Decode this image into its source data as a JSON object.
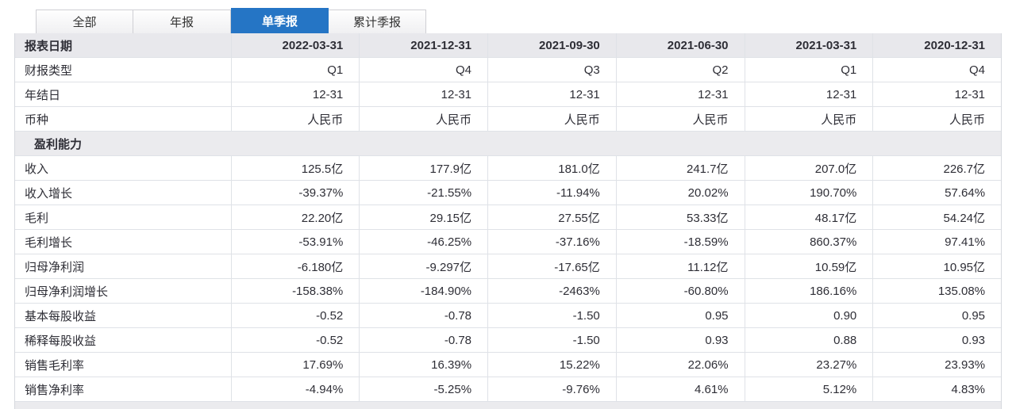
{
  "tabs": {
    "items": [
      {
        "label": "全部",
        "active": false
      },
      {
        "label": "年报",
        "active": false
      },
      {
        "label": "单季报",
        "active": true
      },
      {
        "label": "累计季报",
        "active": false
      }
    ]
  },
  "colors": {
    "accent_blue": "#2575c5",
    "header_bg": "#e8e8ec",
    "section_bg": "#ebebee"
  },
  "table": {
    "header": {
      "label": "报表日期",
      "dates": [
        "2022-03-31",
        "2021-12-31",
        "2021-09-30",
        "2021-06-30",
        "2021-03-31",
        "2020-12-31"
      ]
    },
    "rows": [
      {
        "type": "data",
        "label": "财报类型",
        "values": [
          "Q1",
          "Q4",
          "Q3",
          "Q2",
          "Q1",
          "Q4"
        ]
      },
      {
        "type": "data",
        "label": "年结日",
        "values": [
          "12-31",
          "12-31",
          "12-31",
          "12-31",
          "12-31",
          "12-31"
        ]
      },
      {
        "type": "data",
        "label": "币种",
        "values": [
          "人民币",
          "人民币",
          "人民币",
          "人民币",
          "人民币",
          "人民币"
        ]
      },
      {
        "type": "section",
        "label": "盈利能力",
        "values": [
          "",
          "",
          "",
          "",
          "",
          ""
        ]
      },
      {
        "type": "data",
        "label": "收入",
        "values": [
          "125.5亿",
          "177.9亿",
          "181.0亿",
          "241.7亿",
          "207.0亿",
          "226.7亿"
        ]
      },
      {
        "type": "data",
        "label": "收入增长",
        "values": [
          "-39.37%",
          "-21.55%",
          "-11.94%",
          "20.02%",
          "190.70%",
          "57.64%"
        ]
      },
      {
        "type": "data",
        "label": "毛利",
        "values": [
          "22.20亿",
          "29.15亿",
          "27.55亿",
          "53.33亿",
          "48.17亿",
          "54.24亿"
        ]
      },
      {
        "type": "data",
        "label": "毛利增长",
        "values": [
          "-53.91%",
          "-46.25%",
          "-37.16%",
          "-18.59%",
          "860.37%",
          "97.41%"
        ]
      },
      {
        "type": "data",
        "label": "归母净利润",
        "values": [
          "-6.180亿",
          "-9.297亿",
          "-17.65亿",
          "11.12亿",
          "10.59亿",
          "10.95亿"
        ]
      },
      {
        "type": "data",
        "label": "归母净利润增长",
        "values": [
          "-158.38%",
          "-184.90%",
          "-2463%",
          "-60.80%",
          "186.16%",
          "135.08%"
        ]
      },
      {
        "type": "data",
        "label": "基本每股收益",
        "values": [
          "-0.52",
          "-0.78",
          "-1.50",
          "0.95",
          "0.90",
          "0.95"
        ]
      },
      {
        "type": "data",
        "label": "稀释每股收益",
        "values": [
          "-0.52",
          "-0.78",
          "-1.50",
          "0.93",
          "0.88",
          "0.93"
        ]
      },
      {
        "type": "data",
        "label": "销售毛利率",
        "values": [
          "17.69%",
          "16.39%",
          "15.22%",
          "22.06%",
          "23.27%",
          "23.93%"
        ]
      },
      {
        "type": "data",
        "label": "销售净利率",
        "values": [
          "-4.94%",
          "-5.25%",
          "-9.76%",
          "4.61%",
          "5.12%",
          "4.83%"
        ]
      }
    ]
  }
}
